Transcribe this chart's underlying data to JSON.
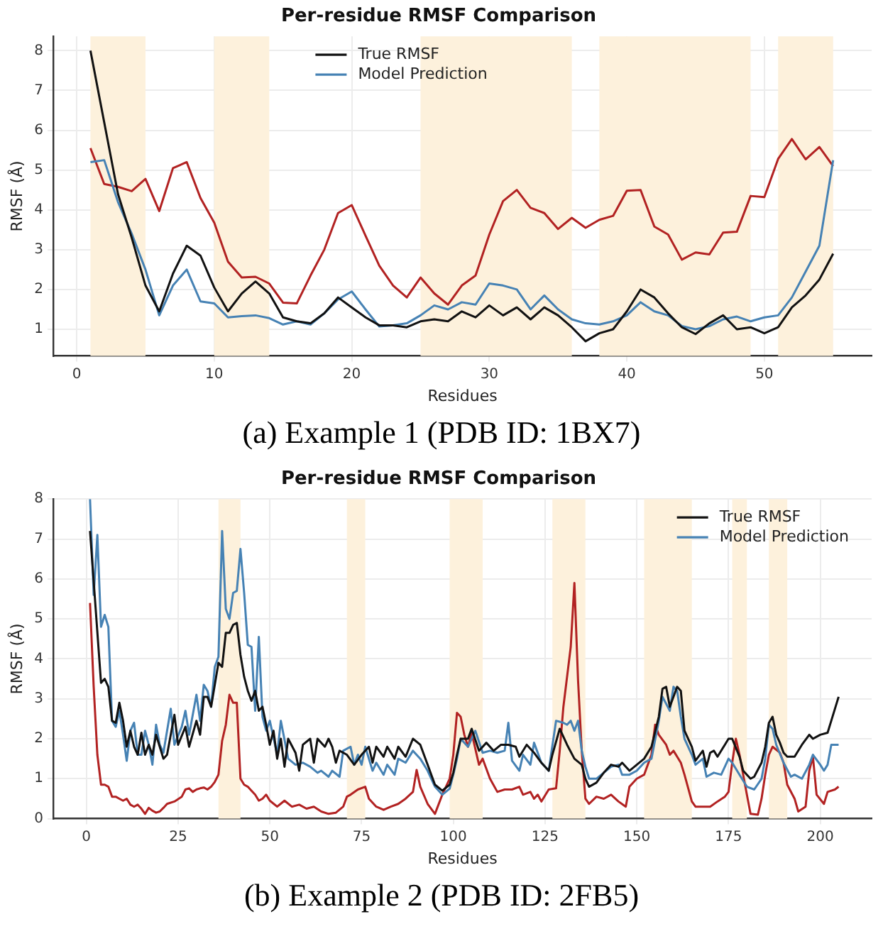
{
  "chart_data": [
    {
      "type": "line",
      "title": "Per-residue RMSF Comparison",
      "xlabel": "Residues",
      "ylabel": "RMSF (Å)",
      "annotations": [
        "(a) Example 1 (PDB ID: 1BX7)"
      ],
      "x": [
        1,
        2,
        3,
        4,
        5,
        6,
        7,
        8,
        9,
        10,
        11,
        12,
        13,
        14,
        15,
        16,
        17,
        18,
        19,
        20,
        21,
        22,
        23,
        24,
        25,
        26,
        27,
        28,
        29,
        30,
        31,
        32,
        33,
        34,
        35,
        36,
        37,
        38,
        39,
        40,
        41,
        42,
        43,
        44,
        45,
        46,
        47,
        48,
        49,
        50,
        51,
        52,
        53,
        54,
        55
      ],
      "series": [
        {
          "name": "True RMSF",
          "color": "#111111",
          "values": [
            8.0,
            6.2,
            4.4,
            3.3,
            2.1,
            1.45,
            2.4,
            3.1,
            2.85,
            2.05,
            1.45,
            1.9,
            2.2,
            1.9,
            1.3,
            1.2,
            1.15,
            1.4,
            1.8,
            1.55,
            1.3,
            1.1,
            1.1,
            1.05,
            1.2,
            1.25,
            1.2,
            1.45,
            1.3,
            1.6,
            1.35,
            1.55,
            1.25,
            1.55,
            1.35,
            1.05,
            0.7,
            0.9,
            1.0,
            1.45,
            2.0,
            1.8,
            1.4,
            1.05,
            0.88,
            1.15,
            1.35,
            1.0,
            1.05,
            0.9,
            1.05,
            1.55,
            1.85,
            2.25,
            2.9
          ]
        },
        {
          "name": "Model Prediction",
          "color": "#4682b4",
          "values": [
            5.2,
            5.25,
            4.2,
            3.4,
            2.5,
            1.35,
            2.1,
            2.5,
            1.7,
            1.65,
            1.3,
            1.33,
            1.35,
            1.28,
            1.12,
            1.2,
            1.12,
            1.4,
            1.75,
            1.95,
            1.5,
            1.07,
            1.1,
            1.15,
            1.35,
            1.6,
            1.5,
            1.68,
            1.62,
            2.15,
            2.1,
            2.0,
            1.5,
            1.85,
            1.5,
            1.25,
            1.15,
            1.12,
            1.2,
            1.35,
            1.68,
            1.45,
            1.35,
            1.08,
            1.0,
            1.08,
            1.25,
            1.32,
            1.2,
            1.3,
            1.35,
            1.8,
            2.45,
            3.1,
            5.25
          ]
        },
        {
          "color": "#b22222",
          "values": [
            5.55,
            4.65,
            4.58,
            4.47,
            4.78,
            3.97,
            5.05,
            5.2,
            4.3,
            3.68,
            2.7,
            2.3,
            2.32,
            2.15,
            1.67,
            1.65,
            2.35,
            3.0,
            3.92,
            4.12,
            3.35,
            2.6,
            2.1,
            1.8,
            2.3,
            1.9,
            1.62,
            2.1,
            2.35,
            3.38,
            4.22,
            4.5,
            4.05,
            3.92,
            3.52,
            3.8,
            3.55,
            3.75,
            3.85,
            4.48,
            4.5,
            3.58,
            3.38,
            2.75,
            2.93,
            2.88,
            3.43,
            3.45,
            4.35,
            4.32,
            5.28,
            5.78,
            5.27,
            5.58,
            5.1
          ]
        }
      ],
      "xlim": [
        -1.7,
        57.8
      ],
      "ylim": [
        0.33,
        8.36
      ],
      "xticks": [
        0,
        10,
        20,
        30,
        40,
        50
      ],
      "yticks": [
        1,
        2,
        3,
        4,
        5,
        6,
        7,
        8
      ],
      "grid": true,
      "legend": "top",
      "marker": "none",
      "bands": [
        {
          "axis": "x",
          "from": 1,
          "to": 5,
          "color": "#fdf1dc"
        },
        {
          "axis": "x",
          "from": 10,
          "to": 14,
          "color": "#fdf1dc"
        },
        {
          "axis": "x",
          "from": 25,
          "to": 36,
          "color": "#fdf1dc"
        },
        {
          "axis": "x",
          "from": 38,
          "to": 49,
          "color": "#fdf1dc"
        },
        {
          "axis": "x",
          "from": 51,
          "to": 55,
          "color": "#fdf1dc"
        }
      ]
    },
    {
      "type": "line",
      "title": "Per-residue RMSF Comparison",
      "xlabel": "Residues",
      "ylabel": "RMSF (Å)",
      "annotations": [
        "(b) Example 2 (PDB ID: 2FB5)"
      ],
      "series": [
        {
          "name": "True RMSF",
          "color": "#111111",
          "x": [
            1,
            4,
            5,
            6,
            7,
            8,
            9,
            10,
            11,
            12,
            13,
            14,
            15,
            16,
            17,
            18,
            19,
            20,
            21,
            22,
            24,
            25,
            27,
            28,
            30,
            31,
            32,
            33,
            34,
            35,
            36,
            37,
            38,
            39,
            40,
            41,
            42,
            43,
            44,
            45,
            46,
            47,
            48,
            49,
            50,
            51,
            52,
            53,
            54,
            55,
            57,
            58,
            59,
            61,
            62,
            63,
            65,
            66,
            67,
            68,
            69,
            71,
            73,
            75,
            77,
            78,
            79,
            81,
            82,
            84,
            85,
            87,
            89,
            91,
            93,
            95,
            97,
            99,
            100,
            101,
            102,
            104,
            105,
            107,
            109,
            111,
            113,
            115,
            117,
            118,
            120,
            122,
            124,
            126,
            127,
            129,
            131,
            133,
            135,
            136,
            137,
            139,
            141,
            143,
            145,
            146,
            148,
            150,
            152,
            154,
            156,
            157,
            158,
            159,
            161,
            162,
            163,
            165,
            166,
            168,
            169,
            170,
            171,
            172,
            174,
            175,
            176,
            178,
            179,
            180,
            181,
            182,
            184,
            185,
            186,
            187,
            188,
            189,
            190,
            191,
            193,
            195,
            197,
            198,
            200,
            202,
            203,
            205
          ],
          "values": [
            7.2,
            3.4,
            3.5,
            3.3,
            2.45,
            2.4,
            2.9,
            2.45,
            1.8,
            2.2,
            1.8,
            1.6,
            2.15,
            1.6,
            1.85,
            1.6,
            2.1,
            1.8,
            1.5,
            1.6,
            2.6,
            1.85,
            2.3,
            1.8,
            2.45,
            2.1,
            3.05,
            3.05,
            2.8,
            3.35,
            3.9,
            3.8,
            4.65,
            4.65,
            4.85,
            4.9,
            4.1,
            3.55,
            3.2,
            2.95,
            3.2,
            2.7,
            2.8,
            2.35,
            1.85,
            2.2,
            1.5,
            2.0,
            1.3,
            2.0,
            1.65,
            1.2,
            1.85,
            2.0,
            1.4,
            2.0,
            1.8,
            2.0,
            1.8,
            1.4,
            1.7,
            1.6,
            1.35,
            1.6,
            1.8,
            1.4,
            1.8,
            1.55,
            1.8,
            1.5,
            1.8,
            1.55,
            2.0,
            1.85,
            1.35,
            0.85,
            0.7,
            0.85,
            1.15,
            1.6,
            2.0,
            2.0,
            2.25,
            1.7,
            1.9,
            1.7,
            1.85,
            1.85,
            1.8,
            1.55,
            1.85,
            1.65,
            1.4,
            1.2,
            1.6,
            2.25,
            1.85,
            1.5,
            1.35,
            1.0,
            0.8,
            0.9,
            1.15,
            1.35,
            1.3,
            1.4,
            1.2,
            1.35,
            1.5,
            1.8,
            2.55,
            3.25,
            3.3,
            2.8,
            3.3,
            3.2,
            2.2,
            1.8,
            1.45,
            1.7,
            1.3,
            1.65,
            1.7,
            1.55,
            1.85,
            2.0,
            2.0,
            1.55,
            1.2,
            1.1,
            1.0,
            1.05,
            1.4,
            1.8,
            2.4,
            2.55,
            2.1,
            1.9,
            1.65,
            1.55,
            1.55,
            1.85,
            2.1,
            2.0,
            2.1,
            2.15,
            2.45,
            3.05
          ]
        },
        {
          "name": "Model Prediction",
          "color": "#4682b4",
          "x": [
            1,
            2,
            3,
            4,
            5,
            6,
            7,
            8,
            9,
            10,
            11,
            12,
            13,
            14,
            15,
            16,
            17,
            18,
            19,
            20,
            21,
            23,
            24,
            26,
            27,
            28,
            30,
            31,
            32,
            33,
            34,
            35,
            36,
            37,
            38,
            39,
            40,
            41,
            42,
            43,
            44,
            45,
            46,
            47,
            48,
            49,
            50,
            52,
            53,
            55,
            57,
            59,
            61,
            63,
            64,
            66,
            67,
            69,
            70,
            72,
            73,
            74,
            75,
            76,
            78,
            79,
            81,
            82,
            84,
            85,
            87,
            89,
            91,
            93,
            95,
            97,
            99,
            100,
            101,
            102,
            104,
            106,
            108,
            110,
            112,
            114,
            115,
            116,
            118,
            119,
            121,
            122,
            124,
            126,
            128,
            130,
            131,
            132,
            133,
            134,
            135,
            136,
            137,
            139,
            141,
            143,
            145,
            146,
            148,
            150,
            152,
            154,
            156,
            157,
            159,
            160,
            161,
            162,
            163,
            165,
            166,
            168,
            169,
            171,
            173,
            175,
            176,
            178,
            180,
            182,
            184,
            185,
            186,
            187,
            188,
            190,
            192,
            193,
            195,
            197,
            198,
            200,
            201,
            202,
            203,
            205
          ],
          "values": [
            8.0,
            5.6,
            7.1,
            4.8,
            5.1,
            4.8,
            2.45,
            2.3,
            2.7,
            2.1,
            1.45,
            2.2,
            2.4,
            1.6,
            1.6,
            2.2,
            1.85,
            1.35,
            2.35,
            1.85,
            1.65,
            2.75,
            1.85,
            2.3,
            2.7,
            2.1,
            3.1,
            2.45,
            3.35,
            3.2,
            2.8,
            3.8,
            4.05,
            7.2,
            5.25,
            5.0,
            5.65,
            5.7,
            6.75,
            5.65,
            4.35,
            4.3,
            2.7,
            4.55,
            2.55,
            2.2,
            2.45,
            1.6,
            2.45,
            1.5,
            1.35,
            1.4,
            1.3,
            1.15,
            1.2,
            1.05,
            1.2,
            1.05,
            1.7,
            1.8,
            1.35,
            1.6,
            1.35,
            1.8,
            1.2,
            1.4,
            1.1,
            1.35,
            1.1,
            1.5,
            1.4,
            1.7,
            1.5,
            1.2,
            0.8,
            0.6,
            0.75,
            1.1,
            1.5,
            2.0,
            1.8,
            2.2,
            1.65,
            1.7,
            1.65,
            1.7,
            2.4,
            1.45,
            1.2,
            1.6,
            1.35,
            1.9,
            1.4,
            1.2,
            2.45,
            2.4,
            2.35,
            2.45,
            2.2,
            2.45,
            1.7,
            1.3,
            1.0,
            1.0,
            1.15,
            1.3,
            1.35,
            1.1,
            1.1,
            1.2,
            1.4,
            1.5,
            2.45,
            3.05,
            2.7,
            3.3,
            3.2,
            2.55,
            2.0,
            1.6,
            1.35,
            1.5,
            1.05,
            1.15,
            1.1,
            1.5,
            1.4,
            1.1,
            0.8,
            0.73,
            1.0,
            1.5,
            2.35,
            2.25,
            1.85,
            1.4,
            1.05,
            1.1,
            1.0,
            1.35,
            1.6,
            1.35,
            1.2,
            1.35,
            1.85,
            1.85
          ]
        },
        {
          "color": "#b22222",
          "x": [
            1,
            2,
            3,
            4,
            5,
            6,
            7,
            8,
            9,
            10,
            11,
            12,
            13,
            14,
            15,
            16,
            17,
            18,
            19,
            20,
            21,
            22,
            24,
            26,
            27,
            28,
            29,
            30,
            31,
            32,
            33,
            34,
            35,
            36,
            37,
            38,
            39,
            40,
            41,
            42,
            43,
            44,
            45,
            46,
            47,
            48,
            49,
            50,
            52,
            54,
            56,
            58,
            60,
            62,
            64,
            66,
            68,
            70,
            71,
            72,
            74,
            76,
            77,
            79,
            81,
            83,
            85,
            87,
            89,
            90,
            91,
            93,
            95,
            97,
            99,
            100,
            101,
            102,
            103,
            104,
            105,
            107,
            108,
            110,
            112,
            114,
            116,
            118,
            119,
            121,
            122,
            123,
            124,
            126,
            128,
            129,
            130,
            132,
            133,
            134,
            135,
            136,
            137,
            139,
            141,
            143,
            145,
            147,
            148,
            150,
            152,
            154,
            155,
            156,
            158,
            159,
            160,
            162,
            163,
            165,
            166,
            168,
            170,
            172,
            174,
            175,
            176,
            177,
            178,
            179,
            180,
            181,
            183,
            184,
            185,
            186,
            187,
            189,
            190,
            191,
            193,
            194,
            196,
            197,
            198,
            199,
            201,
            202,
            204,
            205
          ],
          "values": [
            5.4,
            3.3,
            1.6,
            0.85,
            0.85,
            0.8,
            0.55,
            0.55,
            0.5,
            0.45,
            0.5,
            0.35,
            0.3,
            0.35,
            0.25,
            0.12,
            0.27,
            0.2,
            0.15,
            0.18,
            0.27,
            0.37,
            0.43,
            0.55,
            0.73,
            0.76,
            0.67,
            0.73,
            0.76,
            0.78,
            0.73,
            0.8,
            0.92,
            1.1,
            1.95,
            2.35,
            3.1,
            2.9,
            2.9,
            1.0,
            0.85,
            0.8,
            0.7,
            0.6,
            0.45,
            0.5,
            0.6,
            0.45,
            0.3,
            0.45,
            0.3,
            0.35,
            0.25,
            0.3,
            0.18,
            0.12,
            0.15,
            0.3,
            0.55,
            0.6,
            0.73,
            0.8,
            0.5,
            0.3,
            0.22,
            0.3,
            0.37,
            0.5,
            0.67,
            1.22,
            0.8,
            0.37,
            0.12,
            0.6,
            1.0,
            1.6,
            2.65,
            2.55,
            2.1,
            1.8,
            2.15,
            1.35,
            1.5,
            1.0,
            0.67,
            0.73,
            0.73,
            0.8,
            0.6,
            0.67,
            0.5,
            0.6,
            0.43,
            0.73,
            0.76,
            1.7,
            2.8,
            4.3,
            5.9,
            3.45,
            1.7,
            0.5,
            0.37,
            0.55,
            0.5,
            0.6,
            0.43,
            0.3,
            0.8,
            1.0,
            1.1,
            1.6,
            2.35,
            2.1,
            1.85,
            1.6,
            1.7,
            1.4,
            1.1,
            0.43,
            0.3,
            0.3,
            0.3,
            0.43,
            0.55,
            0.67,
            1.4,
            2.0,
            1.6,
            1.1,
            0.6,
            0.12,
            0.1,
            0.5,
            1.1,
            1.6,
            1.8,
            1.65,
            1.4,
            0.85,
            0.5,
            0.18,
            0.3,
            1.2,
            1.55,
            0.6,
            0.37,
            0.67,
            0.73,
            0.8
          ]
        }
      ],
      "xlim": [
        -9,
        214
      ],
      "ylim": [
        0,
        8
      ],
      "xticks": [
        0,
        25,
        50,
        75,
        100,
        125,
        150,
        175,
        200
      ],
      "yticks": [
        0,
        1,
        2,
        3,
        4,
        5,
        6,
        7,
        8
      ],
      "grid": true,
      "legend": "top right",
      "marker": "none",
      "bands": [
        {
          "axis": "x",
          "from": 36,
          "to": 42,
          "color": "#fdf1dc"
        },
        {
          "axis": "x",
          "from": 71,
          "to": 76,
          "color": "#fdf1dc"
        },
        {
          "axis": "x",
          "from": 99,
          "to": 108,
          "color": "#fdf1dc"
        },
        {
          "axis": "x",
          "from": 127,
          "to": 136,
          "color": "#fdf1dc"
        },
        {
          "axis": "x",
          "from": 152,
          "to": 165,
          "color": "#fdf1dc"
        },
        {
          "axis": "x",
          "from": 176,
          "to": 180,
          "color": "#fdf1dc"
        },
        {
          "axis": "x",
          "from": 186,
          "to": 191,
          "color": "#fdf1dc"
        }
      ]
    }
  ]
}
